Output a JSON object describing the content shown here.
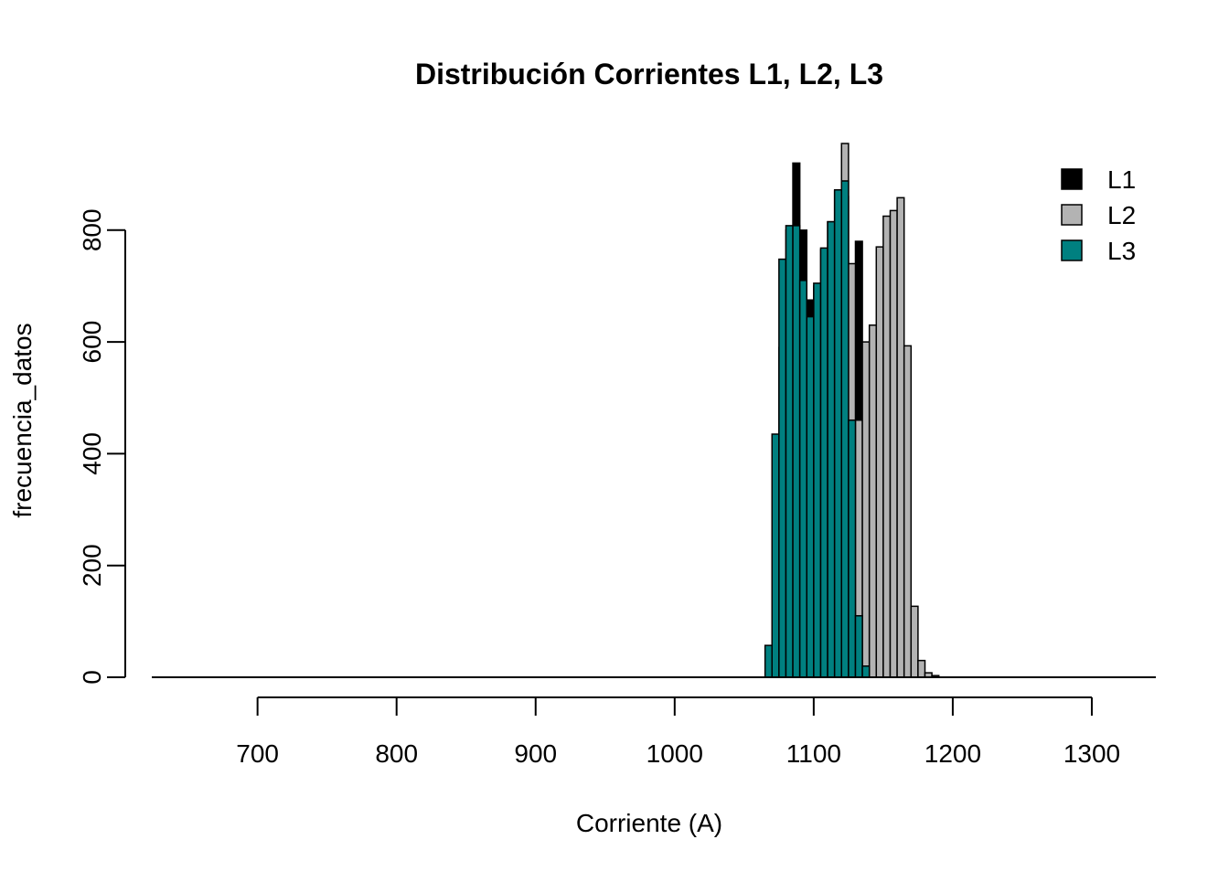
{
  "chart_data": {
    "type": "bar",
    "title": "Distribución Corrientes L1, L2, L3",
    "xlabel": "Corriente (A)",
    "ylabel": "frecuencia_datos",
    "xlim": [
      620,
      1350
    ],
    "ylim": [
      0,
      955
    ],
    "x_ticks": [
      700,
      800,
      900,
      1000,
      1100,
      1200,
      1300
    ],
    "y_ticks": [
      0,
      200,
      400,
      600,
      800
    ],
    "bin_width": 5,
    "legend_position": "top-right",
    "grid": false,
    "series": [
      {
        "name": "L1",
        "color": "#000000",
        "bins": [
          {
            "x0": 1070,
            "value": 0
          },
          {
            "x0": 1075,
            "value": 590
          },
          {
            "x0": 1080,
            "value": 800
          },
          {
            "x0": 1085,
            "value": 920
          },
          {
            "x0": 1090,
            "value": 800
          },
          {
            "x0": 1095,
            "value": 675
          },
          {
            "x0": 1100,
            "value": 700
          },
          {
            "x0": 1105,
            "value": 765
          },
          {
            "x0": 1110,
            "value": 815
          },
          {
            "x0": 1115,
            "value": 870
          },
          {
            "x0": 1120,
            "value": 860
          },
          {
            "x0": 1125,
            "value": 720
          },
          {
            "x0": 1130,
            "value": 780
          },
          {
            "x0": 1135,
            "value": 590
          },
          {
            "x0": 1140,
            "value": 195
          },
          {
            "x0": 1145,
            "value": 45
          },
          {
            "x0": 1150,
            "value": 8
          },
          {
            "x0": 1155,
            "value": 2
          }
        ]
      },
      {
        "name": "L2",
        "color": "#b3b3b3",
        "bins": [
          {
            "x0": 1120,
            "value": 955
          },
          {
            "x0": 1125,
            "value": 740
          },
          {
            "x0": 1130,
            "value": 460
          },
          {
            "x0": 1135,
            "value": 600
          },
          {
            "x0": 1140,
            "value": 630
          },
          {
            "x0": 1145,
            "value": 770
          },
          {
            "x0": 1150,
            "value": 825
          },
          {
            "x0": 1155,
            "value": 835
          },
          {
            "x0": 1160,
            "value": 858
          },
          {
            "x0": 1165,
            "value": 593
          },
          {
            "x0": 1170,
            "value": 127
          },
          {
            "x0": 1175,
            "value": 30
          },
          {
            "x0": 1180,
            "value": 8
          },
          {
            "x0": 1185,
            "value": 3
          }
        ]
      },
      {
        "name": "L3",
        "color": "#008080",
        "bins": [
          {
            "x0": 1065,
            "value": 57
          },
          {
            "x0": 1070,
            "value": 435
          },
          {
            "x0": 1075,
            "value": 748
          },
          {
            "x0": 1080,
            "value": 808
          },
          {
            "x0": 1085,
            "value": 808
          },
          {
            "x0": 1090,
            "value": 710
          },
          {
            "x0": 1095,
            "value": 645
          },
          {
            "x0": 1100,
            "value": 705
          },
          {
            "x0": 1105,
            "value": 768
          },
          {
            "x0": 1110,
            "value": 815
          },
          {
            "x0": 1115,
            "value": 872
          },
          {
            "x0": 1120,
            "value": 888
          },
          {
            "x0": 1125,
            "value": 460
          },
          {
            "x0": 1130,
            "value": 110
          },
          {
            "x0": 1135,
            "value": 20
          }
        ]
      }
    ]
  }
}
